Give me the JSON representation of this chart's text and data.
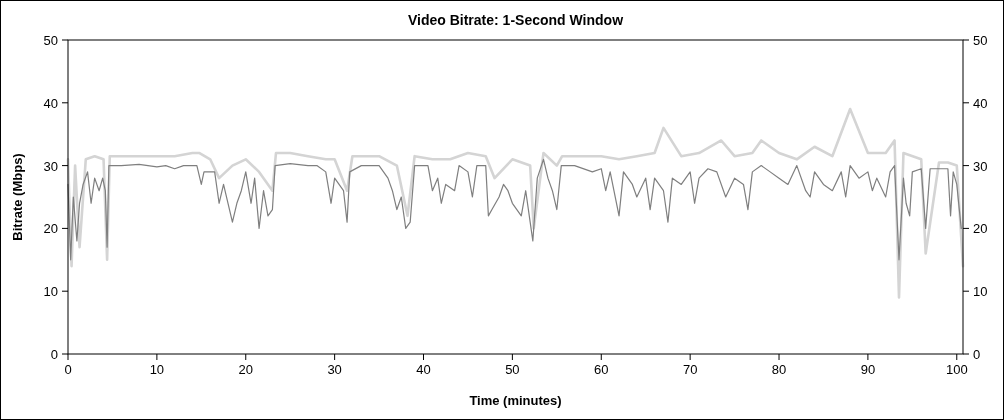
{
  "chart_data": {
    "type": "line",
    "title": "Video Bitrate: 1-Second Window",
    "xlabel": "Time (minutes)",
    "ylabel": "Bitrate (Mbps)",
    "xlim": [
      0,
      100.7
    ],
    "xticks": [
      0,
      10,
      20,
      30,
      40,
      50,
      60,
      70,
      80,
      90,
      100
    ],
    "ylim": [
      0,
      50
    ],
    "yticks": [
      0,
      10,
      20,
      30,
      40,
      50
    ],
    "y2lim": [
      0,
      50
    ],
    "y2ticks": [
      0,
      10,
      20,
      30,
      40,
      50
    ],
    "line_style": "solid",
    "series": [
      {
        "color": "#d4d4d4",
        "x": [
          0,
          0.4,
          0.8,
          1.3,
          2,
          3,
          4,
          4.4,
          4.7,
          6,
          8,
          10,
          12,
          14,
          14.8,
          16,
          17,
          18.5,
          20,
          21.5,
          23,
          23.4,
          25,
          27,
          29,
          30,
          31.4,
          32,
          35,
          37,
          38.2,
          39,
          41,
          43,
          45,
          47,
          48,
          50,
          52,
          52.4,
          53.5,
          55,
          55.6,
          58,
          60,
          62,
          64,
          66,
          67,
          69,
          71,
          73.5,
          75,
          77,
          78,
          80,
          82,
          84,
          86,
          88,
          90,
          92,
          93,
          93.5,
          94,
          96,
          96.5,
          98,
          99,
          100,
          100.7
        ],
        "values": [
          31,
          14,
          30,
          17,
          31,
          31.5,
          31,
          15,
          31.5,
          31.5,
          31.5,
          31.5,
          31.5,
          32,
          32,
          31,
          28,
          30,
          31,
          29,
          26,
          32,
          32,
          31.5,
          31,
          31,
          26,
          31.5,
          31.5,
          30,
          22,
          31.5,
          31,
          31,
          32,
          31.5,
          28,
          31,
          30,
          20,
          32,
          30,
          31.5,
          31.5,
          31.5,
          31,
          31.5,
          32,
          36,
          31.5,
          32,
          34,
          31.5,
          32,
          34,
          32,
          31,
          33,
          31.5,
          39,
          32,
          32,
          34,
          9,
          32,
          31,
          16,
          30.5,
          30.5,
          30,
          14
        ]
      },
      {
        "color": "#7f7f7f",
        "x": [
          0,
          0.3,
          0.6,
          1,
          1.3,
          1.7,
          2.2,
          2.6,
          3,
          3.5,
          3.9,
          4.2,
          4.4,
          4.6,
          6,
          8,
          10,
          11,
          12,
          13,
          14.5,
          15,
          15.3,
          16.5,
          17,
          17.5,
          18.5,
          19,
          19.5,
          20,
          20.6,
          21,
          21.5,
          22,
          22.5,
          23,
          23.3,
          25,
          27,
          28,
          29,
          29.6,
          30,
          31,
          31.4,
          31.7,
          33,
          35,
          36,
          36.5,
          37,
          37.5,
          38,
          38.5,
          39,
          40.5,
          41,
          41.6,
          42,
          42.5,
          43.5,
          44,
          45,
          45.5,
          46,
          47,
          47.3,
          47.7,
          48.5,
          49,
          49.5,
          50,
          51,
          51.5,
          52,
          52.3,
          52.8,
          53.5,
          54,
          54.5,
          55,
          55.5,
          57,
          59,
          60,
          60.5,
          61,
          62,
          62.5,
          63.5,
          64,
          65,
          65.5,
          66,
          67,
          67.5,
          68,
          69,
          70,
          70.5,
          71,
          72,
          73,
          74,
          75,
          76,
          76.5,
          77,
          78,
          79,
          80,
          81,
          82,
          83,
          83.5,
          84,
          85,
          86,
          87,
          87.5,
          88,
          89,
          90,
          90.5,
          91,
          92,
          92.5,
          93,
          93.5,
          94,
          94.3,
          94.7,
          95,
          96,
          96.5,
          97,
          98,
          99,
          99.3,
          99.6,
          100,
          100.5
        ],
        "values": [
          27,
          15,
          25,
          18,
          24,
          27,
          29,
          24,
          28,
          26,
          28,
          26,
          17,
          30,
          30,
          30.2,
          29.8,
          30,
          29.5,
          30,
          30,
          27,
          29,
          29,
          24,
          27,
          21,
          24,
          26,
          29,
          24,
          28,
          20,
          26,
          22,
          23,
          30,
          30.3,
          30,
          30,
          29,
          24,
          28,
          26,
          21,
          29,
          30,
          30,
          28,
          26,
          23,
          25,
          20,
          21,
          30,
          30,
          26,
          28,
          24,
          27,
          26,
          30,
          29,
          25,
          30,
          30,
          22,
          23,
          25,
          27,
          26,
          24,
          22,
          26,
          21,
          18,
          28,
          31,
          28,
          26,
          23,
          30,
          30,
          29,
          29.5,
          26,
          29,
          22,
          29,
          27,
          25,
          28,
          23,
          28,
          26,
          21,
          28,
          27,
          29,
          24,
          28,
          29.5,
          29,
          25,
          28,
          27,
          23,
          29,
          30,
          29,
          28,
          27,
          30,
          26,
          25,
          29,
          27,
          26,
          29,
          25,
          30,
          28,
          29,
          26,
          28,
          25,
          29,
          30,
          15,
          28,
          24,
          22,
          29,
          29.5,
          20,
          29.5,
          29.5,
          29.5,
          22,
          29,
          27,
          20
        ]
      }
    ]
  }
}
